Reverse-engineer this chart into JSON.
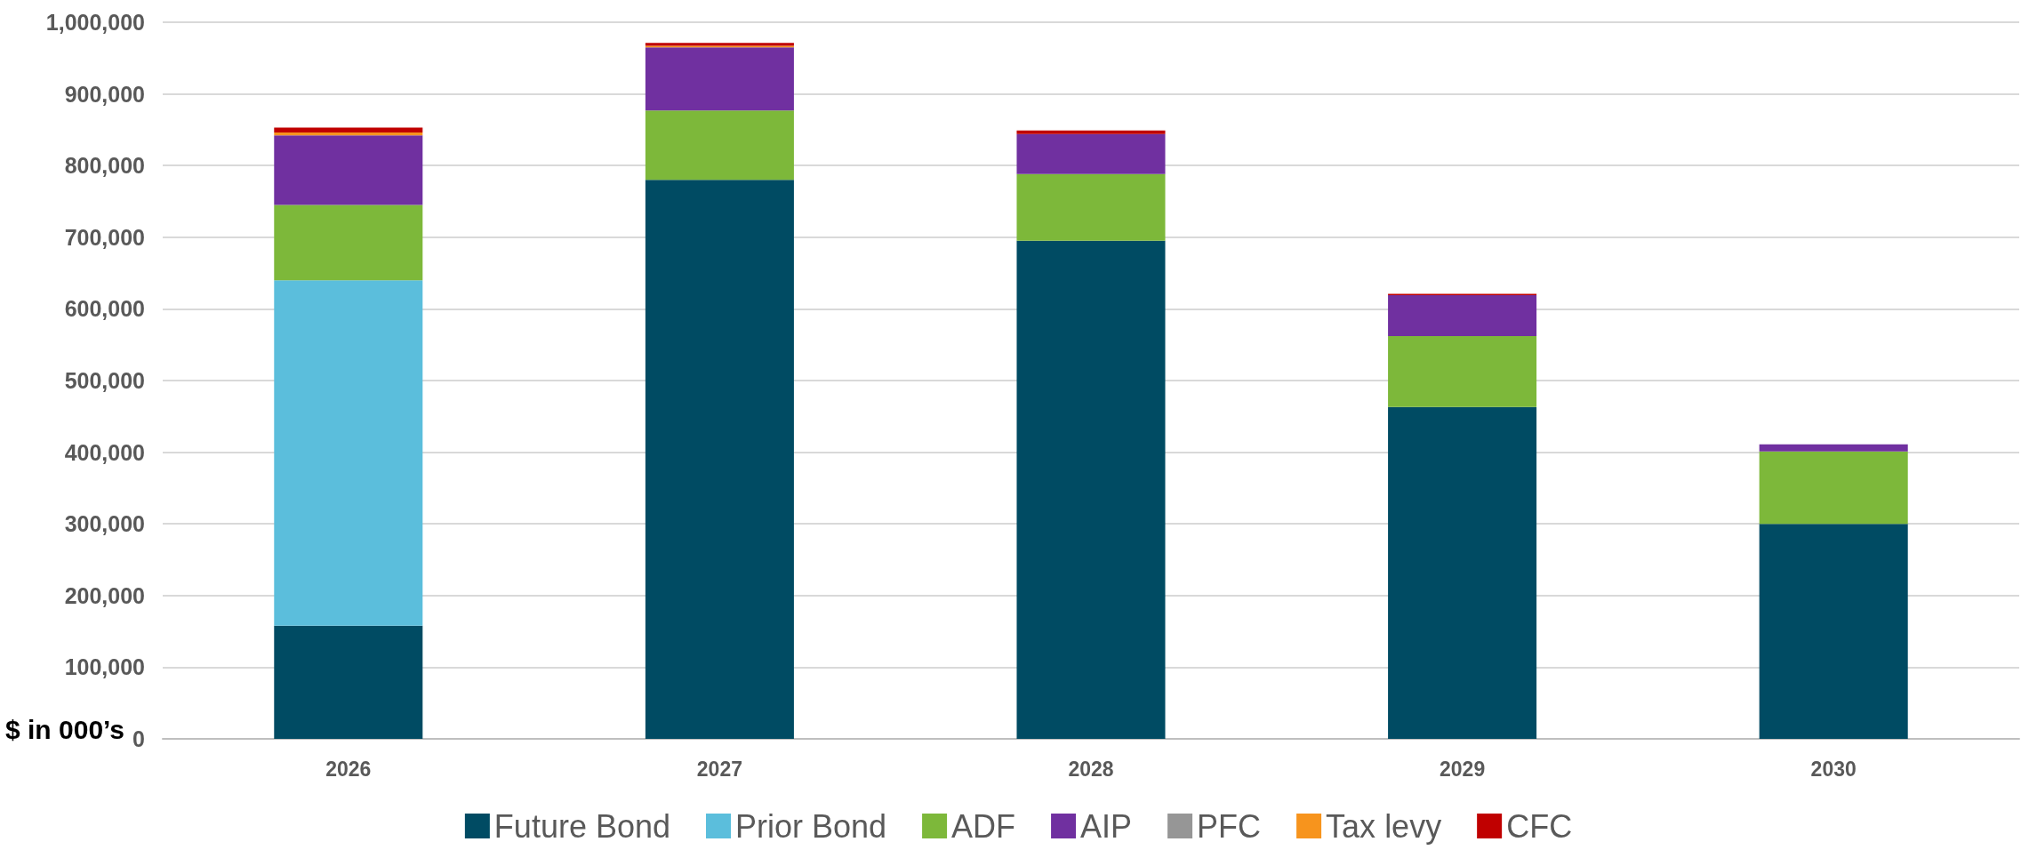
{
  "chart_data": {
    "type": "bar",
    "stacked": true,
    "ylabel": "$ in 000’s",
    "categories": [
      "2026",
      "2027",
      "2028",
      "2029",
      "2030"
    ],
    "series": [
      {
        "name": "Future Bond",
        "color": "#004b63",
        "values": [
          158000,
          780000,
          695000,
          463000,
          300000
        ]
      },
      {
        "name": "Prior Bond",
        "color": "#5bbedc",
        "values": [
          482000,
          0,
          0,
          0,
          0
        ]
      },
      {
        "name": "ADF",
        "color": "#7db83a",
        "values": [
          105000,
          97000,
          93000,
          99000,
          101000
        ]
      },
      {
        "name": "AIP",
        "color": "#7030a0",
        "values": [
          97000,
          88000,
          56000,
          57000,
          10000
        ]
      },
      {
        "name": "PFC",
        "color": "#969696",
        "values": [
          0,
          0,
          0,
          0,
          0
        ]
      },
      {
        "name": "Tax levy",
        "color": "#f7941d",
        "values": [
          4000,
          2000,
          0,
          0,
          0
        ]
      },
      {
        "name": "CFC",
        "color": "#c00000",
        "values": [
          7000,
          4000,
          5000,
          2000,
          0
        ]
      }
    ],
    "ylim": [
      0,
      1000000
    ],
    "yticks": [
      0,
      {
        "value": 100000,
        "label": "100,000"
      },
      {
        "value": 200000,
        "label": "200,000"
      },
      {
        "value": 300000,
        "label": "300,000"
      },
      {
        "value": 400000,
        "label": "400,000"
      },
      {
        "value": 500000,
        "label": "500,000"
      },
      {
        "value": 600000,
        "label": "600,000"
      },
      {
        "value": 700000,
        "label": "700,000"
      },
      {
        "value": 800000,
        "label": "800,000"
      },
      {
        "value": 900000,
        "label": "900,000"
      },
      {
        "value": 1000000,
        "label": "1,000,000"
      }
    ],
    "grid": "y",
    "legend": "bottom"
  }
}
